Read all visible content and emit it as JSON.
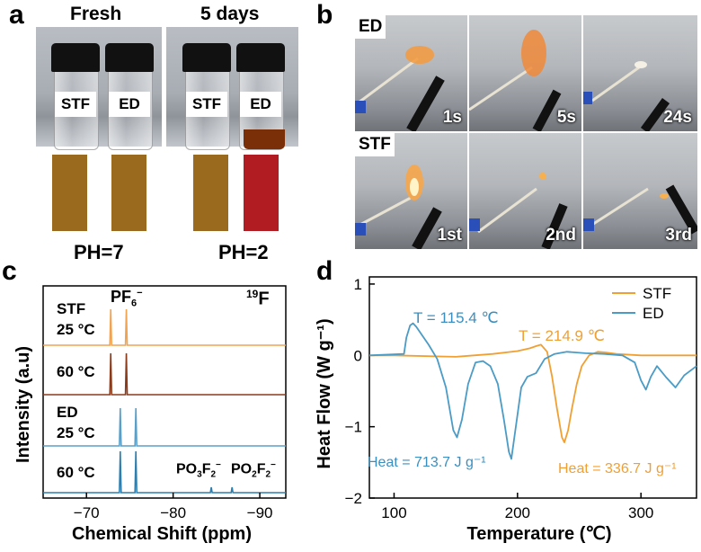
{
  "panel_a": {
    "label": "a",
    "fresh_title": "Fresh",
    "aged_title": "5 days",
    "vial_labels": [
      "STF",
      "ED",
      "STF",
      "ED"
    ],
    "ph_left": "PH=7",
    "ph_right": "PH=2",
    "colors": {
      "swatch_brown": "#9a6a1e",
      "swatch_red": "#b01c22",
      "liquid": "#7a2f08"
    }
  },
  "panel_b": {
    "label": "b",
    "row_labels": [
      "ED",
      "STF"
    ],
    "ed_times": [
      "1s",
      "5s",
      "24s"
    ],
    "stf_times": [
      "1st",
      "2nd",
      "3rd"
    ]
  },
  "panel_c": {
    "label": "c",
    "nucleus": "19F",
    "peak_label_main": "PF6−",
    "peak_label_po3": "PO3F2−",
    "peak_label_po2": "PO2F2−",
    "xlabel": "Chemical Shift (ppm)",
    "ylabel": "Intensity (a.u)",
    "traces": [
      {
        "group": "STF",
        "temp": "25 °C",
        "color": "#f0a452"
      },
      {
        "group": "",
        "temp": "60 °C",
        "color": "#8b3a1a"
      },
      {
        "group": "ED",
        "temp": "25 °C",
        "color": "#5a9fc7"
      },
      {
        "group": "",
        "temp": "60 °C",
        "color": "#2f7fae"
      }
    ]
  },
  "panel_d": {
    "label": "d",
    "ann_t_ed": "T = 115.4 ℃",
    "ann_t_stf": "T = 214.9 ℃",
    "ann_heat_ed": "Heat = 713.7 J g⁻¹",
    "ann_heat_stf": "Heat = 336.7 J g⁻¹"
  },
  "chart_data": [
    {
      "type": "line",
      "panel": "c",
      "xlabel": "Chemical Shift (ppm)",
      "ylabel": "Intensity (a.u)",
      "xlim": [
        -65,
        -93
      ],
      "x_ticks": [
        -70,
        -80,
        -90
      ],
      "series": [
        {
          "name": "STF 25 °C",
          "peaks_ppm": [
            -72.8,
            -74.6
          ]
        },
        {
          "name": "STF 60 °C",
          "peaks_ppm": [
            -72.8,
            -74.6
          ]
        },
        {
          "name": "ED 25 °C",
          "peaks_ppm": [
            -73.9,
            -75.7
          ]
        },
        {
          "name": "ED 60 °C",
          "peaks_ppm": [
            -73.9,
            -75.7,
            -84.4,
            -86.8
          ]
        }
      ]
    },
    {
      "type": "line",
      "panel": "d",
      "xlabel": "Temperature (℃)",
      "ylabel": "Heat Flow (W g⁻¹)",
      "xlim": [
        80,
        345
      ],
      "ylim": [
        -2,
        1.1
      ],
      "x_ticks": [
        100,
        200,
        300
      ],
      "y_ticks": [
        1,
        0,
        -1,
        -2
      ],
      "legend_position": "top-right",
      "series": [
        {
          "name": "STF",
          "color": "#f0a033",
          "x": [
            80,
            100,
            150,
            180,
            200,
            210,
            215,
            219,
            224,
            228,
            232,
            236,
            238,
            241,
            244,
            248,
            252,
            258,
            265,
            272,
            280,
            300,
            320,
            345
          ],
          "y": [
            0.0,
            0.0,
            -0.02,
            0.02,
            0.06,
            0.1,
            0.13,
            0.15,
            0.05,
            -0.3,
            -0.75,
            -1.15,
            -1.22,
            -1.05,
            -0.75,
            -0.4,
            -0.15,
            0.0,
            0.05,
            0.04,
            0.02,
            0.0,
            0.0,
            0.0
          ]
        },
        {
          "name": "ED",
          "color": "#4a9bc6",
          "x": [
            80,
            108,
            110,
            113,
            115.4,
            118,
            122,
            128,
            135,
            142,
            148,
            151,
            155,
            160,
            166,
            172,
            178,
            184,
            189,
            193,
            195,
            199,
            203,
            208,
            215,
            222,
            230,
            240,
            255,
            270,
            285,
            295,
            300,
            304,
            308,
            313,
            320,
            328,
            335,
            345
          ],
          "y": [
            0.0,
            0.02,
            0.25,
            0.42,
            0.45,
            0.4,
            0.3,
            0.15,
            -0.05,
            -0.45,
            -1.05,
            -1.15,
            -0.9,
            -0.4,
            -0.1,
            -0.08,
            -0.15,
            -0.4,
            -0.9,
            -1.35,
            -1.45,
            -0.95,
            -0.45,
            -0.3,
            -0.25,
            -0.05,
            0.02,
            0.05,
            0.03,
            0.02,
            0.0,
            -0.1,
            -0.35,
            -0.48,
            -0.3,
            -0.15,
            -0.3,
            -0.45,
            -0.28,
            -0.15
          ]
        }
      ]
    }
  ]
}
